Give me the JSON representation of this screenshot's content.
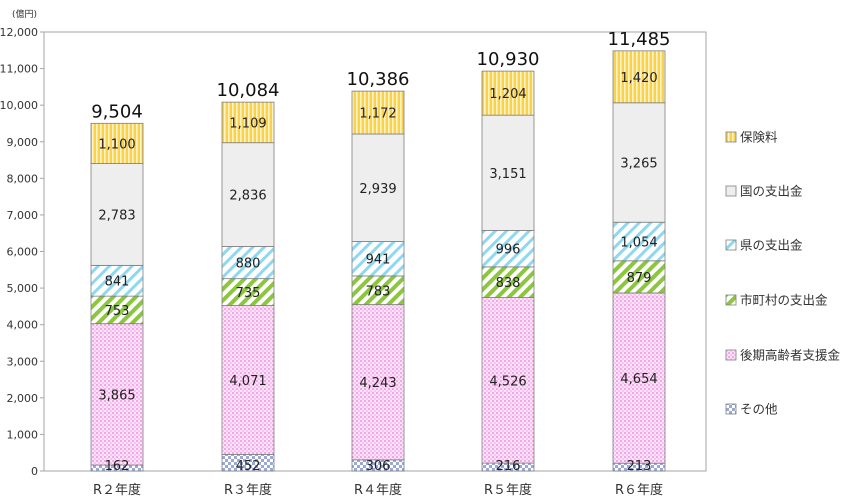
{
  "chart_data": {
    "type": "bar",
    "stacked": true,
    "unit_label": "(億円)",
    "categories": [
      "R２年度",
      "R３年度",
      "R４年度",
      "R５年度",
      "R６年度"
    ],
    "y_ticks": [
      "0",
      "1,000",
      "2,000",
      "3,000",
      "4,000",
      "5,000",
      "6,000",
      "7,000",
      "8,000",
      "9,000",
      "10,000",
      "11,000",
      "12,000"
    ],
    "ylim": [
      0,
      12000
    ],
    "grid": false,
    "legend_position": "right",
    "series": [
      {
        "name": "その他",
        "values": [
          162,
          452,
          306,
          216,
          213
        ],
        "labels": [
          "162",
          "452",
          "306",
          "216",
          "213"
        ],
        "color": "#a8b8e0",
        "pattern": "checker"
      },
      {
        "name": "後期高齢者支援金",
        "values": [
          3865,
          4071,
          4243,
          4526,
          4654
        ],
        "labels": [
          "3,865",
          "4,071",
          "4,243",
          "4,526",
          "4,654"
        ],
        "color": "#f3a6e8",
        "pattern": "dots"
      },
      {
        "name": "市町村の支出金",
        "values": [
          753,
          735,
          783,
          838,
          879
        ],
        "labels": [
          "753",
          "735",
          "783",
          "838",
          "879"
        ],
        "color": "#8cc63f",
        "pattern": "diag-green"
      },
      {
        "name": "県の支出金",
        "values": [
          841,
          880,
          941,
          996,
          1054
        ],
        "labels": [
          "841",
          "880",
          "941",
          "996",
          "1,054"
        ],
        "color": "#7fd3ea",
        "pattern": "diag-blue"
      },
      {
        "name": "国の支出金",
        "values": [
          2783,
          2836,
          2939,
          3151,
          3265
        ],
        "labels": [
          "2,783",
          "2,836",
          "2,939",
          "3,151",
          "3,265"
        ],
        "color": "#eeeeee",
        "pattern": "solid"
      },
      {
        "name": "保険料",
        "values": [
          1100,
          1109,
          1172,
          1204,
          1420
        ],
        "labels": [
          "1,100",
          "1,109",
          "1,172",
          "1,204",
          "1,420"
        ],
        "color": "#f2c230",
        "pattern": "vstripes"
      }
    ],
    "totals": [
      "9,504",
      "10,084",
      "10,386",
      "10,930",
      "11,485"
    ],
    "legend_order": [
      "保険料",
      "国の支出金",
      "県の支出金",
      "市町村の支出金",
      "後期高齢者支援金",
      "その他"
    ]
  }
}
